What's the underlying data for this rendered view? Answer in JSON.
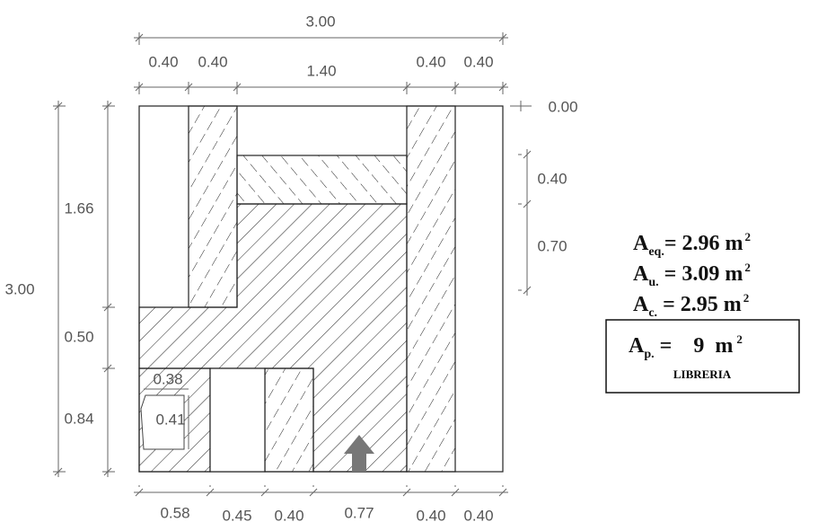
{
  "dimensions": {
    "top_total": "3.00",
    "top": [
      "0.40",
      "0.40",
      "1.40",
      "0.40",
      "0.40"
    ],
    "left_total": "3.00",
    "left": [
      "1.66",
      "0.50",
      "0.84"
    ],
    "right": [
      "0.00",
      "0.40",
      "0.70"
    ],
    "bottom": [
      "0.58",
      "0.45",
      "0.40",
      "0.77",
      "0.40",
      "0.40"
    ],
    "inner": [
      "0.38",
      "0.41"
    ]
  },
  "areas": [
    {
      "symbol": "A",
      "subscript": "eq.",
      "value": "=  2.96 m",
      "superscript": "2"
    },
    {
      "symbol": "A",
      "subscript": "u.",
      "value": " = 3.09 m",
      "superscript": "2"
    },
    {
      "symbol": "A",
      "subscript": "c.",
      "value": "  = 2.95 m",
      "superscript": "2"
    }
  ],
  "summary": {
    "symbol": "A",
    "subscript": "p.",
    "value": " =    9  m",
    "superscript": "2",
    "label": "LIBRERIA"
  }
}
